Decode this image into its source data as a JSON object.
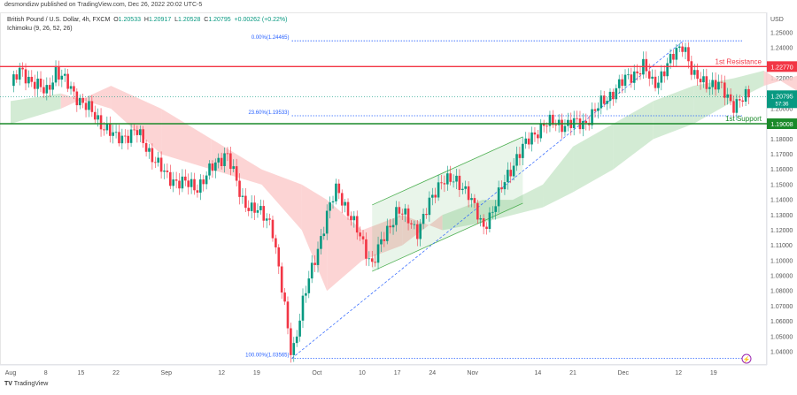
{
  "header": {
    "published": "desmondizw published on TradingView.com, Dec 26, 2022 20:02 UTC-5",
    "symbol": "British Pound / U.S. Dollar, 4h, FXCM",
    "o_label": "O",
    "o": "1.20533",
    "h_label": "H",
    "h": "1.20917",
    "l_label": "L",
    "l": "1.20528",
    "c_label": "C",
    "c": "1.20795",
    "change": "+0.00262 (+0.22%)",
    "indicator": "Ichimoku (9, 26, 52, 26)"
  },
  "footer": {
    "brand": "TradingView"
  },
  "colors": {
    "up": "#089981",
    "down": "#f23645",
    "resistance": "#f23645",
    "support": "#1b8a2a",
    "fib": "#2962ff",
    "cloud_up": "#c8e6c9",
    "cloud_down": "#fbc9c9"
  },
  "chart_data": {
    "type": "candlestick",
    "currency": "USD",
    "ylim": [
      1.03,
      1.255
    ],
    "yticks": [
      "1.25000",
      "1.24000",
      "1.22000",
      "1.20000",
      "1.18000",
      "1.17000",
      "1.16000",
      "1.15000",
      "1.14000",
      "1.13000",
      "1.12000",
      "1.11000",
      "1.10000",
      "1.09000",
      "1.08000",
      "1.07000",
      "1.06000",
      "1.05000",
      "1.04000"
    ],
    "xticks": [
      {
        "label": "Aug",
        "day": 0
      },
      {
        "label": "8",
        "day": 7
      },
      {
        "label": "15",
        "day": 14
      },
      {
        "label": "22",
        "day": 21
      },
      {
        "label": "Sep",
        "day": 31
      },
      {
        "label": "12",
        "day": 42
      },
      {
        "label": "19",
        "day": 49
      },
      {
        "label": "Oct",
        "day": 61
      },
      {
        "label": "10",
        "day": 70
      },
      {
        "label": "17",
        "day": 77
      },
      {
        "label": "24",
        "day": 84
      },
      {
        "label": "Nov",
        "day": 92
      },
      {
        "label": "14",
        "day": 105
      },
      {
        "label": "21",
        "day": 112
      },
      {
        "label": "Dec",
        "day": 122
      },
      {
        "label": "12",
        "day": 133
      },
      {
        "label": "19",
        "day": 140
      }
    ],
    "price_path": [
      [
        0,
        1.215
      ],
      [
        2,
        1.225
      ],
      [
        7,
        1.21
      ],
      [
        9,
        1.225
      ],
      [
        14,
        1.205
      ],
      [
        21,
        1.18
      ],
      [
        25,
        1.185
      ],
      [
        31,
        1.155
      ],
      [
        37,
        1.148
      ],
      [
        43,
        1.172
      ],
      [
        46,
        1.14
      ],
      [
        52,
        1.125
      ],
      [
        56,
        1.037
      ],
      [
        58,
        1.07
      ],
      [
        63,
        1.13
      ],
      [
        65,
        1.148
      ],
      [
        72,
        1.098
      ],
      [
        77,
        1.134
      ],
      [
        81,
        1.12
      ],
      [
        86,
        1.155
      ],
      [
        91,
        1.147
      ],
      [
        94,
        1.12
      ],
      [
        101,
        1.17
      ],
      [
        106,
        1.19
      ],
      [
        114,
        1.19
      ],
      [
        121,
        1.215
      ],
      [
        126,
        1.228
      ],
      [
        128,
        1.215
      ],
      [
        134,
        1.244
      ],
      [
        136,
        1.22
      ],
      [
        141,
        1.215
      ],
      [
        144,
        1.203
      ],
      [
        147,
        1.208
      ]
    ],
    "cloud": [
      [
        0,
        1.205,
        1.19
      ],
      [
        10,
        1.21,
        1.2
      ],
      [
        20,
        1.2,
        1.215
      ],
      [
        30,
        1.17,
        1.2
      ],
      [
        40,
        1.16,
        1.18
      ],
      [
        50,
        1.15,
        1.16
      ],
      [
        58,
        1.12,
        1.15
      ],
      [
        63,
        1.08,
        1.14
      ],
      [
        70,
        1.1,
        1.12
      ],
      [
        78,
        1.11,
        1.13
      ],
      [
        86,
        1.13,
        1.12
      ],
      [
        94,
        1.14,
        1.125
      ],
      [
        100,
        1.14,
        1.13
      ],
      [
        106,
        1.15,
        1.135
      ],
      [
        112,
        1.175,
        1.145
      ],
      [
        120,
        1.19,
        1.16
      ],
      [
        128,
        1.205,
        1.18
      ],
      [
        136,
        1.215,
        1.19
      ],
      [
        144,
        1.22,
        1.205
      ],
      [
        150,
        1.225,
        1.215
      ],
      [
        160,
        1.205,
        1.225
      ]
    ],
    "levels": [
      {
        "label": "1st Resistance",
        "value": 1.2277,
        "tag": "1.22770",
        "color": "resistance"
      },
      {
        "label": "1st Support",
        "value": 1.19008,
        "tag": "1.19008",
        "color": "support"
      }
    ],
    "fib": [
      {
        "label": "0.00%(1.24465)",
        "value": 1.24465
      },
      {
        "label": "23.60%(1.19533)",
        "value": 1.19533
      },
      {
        "label": "100.00%(1.03565)",
        "value": 1.03565
      }
    ],
    "last_price": {
      "value": 1.20795,
      "tag": "1.20795",
      "countdown": "57:36"
    },
    "channel": {
      "upper": [
        [
          72,
          1.1366
        ],
        [
          102,
          1.1814
        ]
      ],
      "lower": [
        [
          72,
          1.0929
        ],
        [
          102,
          1.1377
        ]
      ]
    },
    "trendline": [
      [
        56,
        1.03565
      ],
      [
        134,
        1.24465
      ]
    ]
  }
}
